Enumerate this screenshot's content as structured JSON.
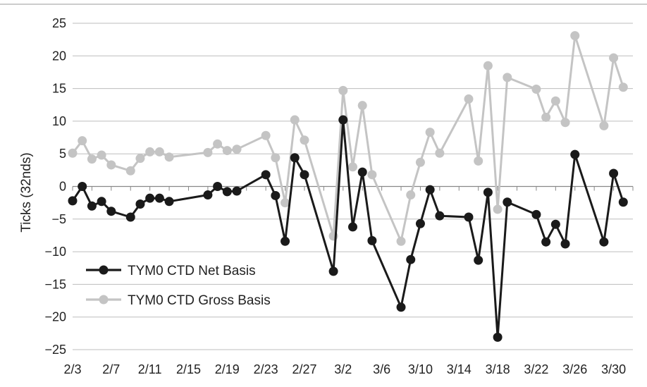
{
  "chart_data": {
    "type": "line",
    "title": "",
    "xlabel": "",
    "ylabel": "Ticks (32nds)",
    "ylim": [
      -25,
      25
    ],
    "y_ticks": [
      25,
      20,
      15,
      10,
      5,
      0,
      -5,
      -10,
      -15,
      -20,
      -25
    ],
    "y_tick_labels": [
      "25",
      "20",
      "15",
      "10",
      "5",
      "0",
      "−5",
      "−10",
      "−15",
      "−20",
      "−25"
    ],
    "x_ticks": [
      {
        "day": 3,
        "label": "2/3"
      },
      {
        "day": 7,
        "label": "2/7"
      },
      {
        "day": 11,
        "label": "2/11"
      },
      {
        "day": 15,
        "label": "2/15"
      },
      {
        "day": 19,
        "label": "2/19"
      },
      {
        "day": 23,
        "label": "2/23"
      },
      {
        "day": 27,
        "label": "2/27"
      },
      {
        "day": 31,
        "label": "3/2"
      },
      {
        "day": 35,
        "label": "3/6"
      },
      {
        "day": 39,
        "label": "3/10"
      },
      {
        "day": 43,
        "label": "3/14"
      },
      {
        "day": 47,
        "label": "3/18"
      },
      {
        "day": 51,
        "label": "3/22"
      },
      {
        "day": 55,
        "label": "3/26"
      },
      {
        "day": 59,
        "label": "3/30"
      }
    ],
    "xlim_days": [
      3,
      61
    ],
    "grid": "horizontal",
    "legend_position": "bottom-left",
    "series": [
      {
        "name": "TYM0 CTD Net Basis",
        "color": "#1a1a1a",
        "points": [
          [
            3,
            -2.2
          ],
          [
            4,
            0
          ],
          [
            5,
            -3
          ],
          [
            6,
            -2.3
          ],
          [
            7,
            -3.8
          ],
          [
            9,
            -4.7
          ],
          [
            10,
            -2.7
          ],
          [
            11,
            -1.8
          ],
          [
            12,
            -1.8
          ],
          [
            13,
            -2.3
          ],
          [
            17,
            -1.3
          ],
          [
            18,
            0
          ],
          [
            19,
            -0.8
          ],
          [
            20,
            -0.7
          ],
          [
            23,
            1.8
          ],
          [
            24,
            -1.4
          ],
          [
            25,
            -8.4
          ],
          [
            26,
            4.4
          ],
          [
            27,
            1.8
          ],
          [
            30,
            -13
          ],
          [
            31,
            10.2
          ],
          [
            32,
            -6.2
          ],
          [
            33,
            2.2
          ],
          [
            34,
            -8.3
          ],
          [
            37,
            -18.5
          ],
          [
            38,
            -11.2
          ],
          [
            39,
            -5.7
          ],
          [
            40,
            -0.5
          ],
          [
            41,
            -4.5
          ],
          [
            44,
            -4.7
          ],
          [
            45,
            -11.3
          ],
          [
            46,
            -0.9
          ],
          [
            47,
            -23.1
          ],
          [
            48,
            -2.4
          ],
          [
            51,
            -4.3
          ],
          [
            52,
            -8.5
          ],
          [
            53,
            -5.8
          ],
          [
            54,
            -8.8
          ],
          [
            55,
            4.9
          ],
          [
            58,
            -8.5
          ],
          [
            59,
            2
          ],
          [
            60,
            -2.4
          ]
        ]
      },
      {
        "name": "TYM0 CTD Gross Basis",
        "color": "#c4c4c4",
        "points": [
          [
            3,
            5.1
          ],
          [
            4,
            7
          ],
          [
            5,
            4.2
          ],
          [
            6,
            4.8
          ],
          [
            7,
            3.3
          ],
          [
            9,
            2.4
          ],
          [
            10,
            4.3
          ],
          [
            11,
            5.3
          ],
          [
            12,
            5.3
          ],
          [
            13,
            4.5
          ],
          [
            17,
            5.2
          ],
          [
            18,
            6.5
          ],
          [
            19,
            5.5
          ],
          [
            20,
            5.7
          ],
          [
            23,
            7.8
          ],
          [
            24,
            4.4
          ],
          [
            25,
            -2.5
          ],
          [
            26,
            10.2
          ],
          [
            27,
            7.1
          ],
          [
            30,
            -7.6
          ],
          [
            31,
            14.7
          ],
          [
            32,
            3
          ],
          [
            33,
            12.4
          ],
          [
            34,
            1.8
          ],
          [
            37,
            -8.4
          ],
          [
            38,
            -1.3
          ],
          [
            39,
            3.7
          ],
          [
            40,
            8.3
          ],
          [
            41,
            5.1
          ],
          [
            44,
            13.4
          ],
          [
            45,
            3.9
          ],
          [
            46,
            18.5
          ],
          [
            47,
            -3.5
          ],
          [
            48,
            16.7
          ],
          [
            51,
            14.9
          ],
          [
            52,
            10.6
          ],
          [
            53,
            13.1
          ],
          [
            54,
            9.8
          ],
          [
            55,
            23.1
          ],
          [
            58,
            9.3
          ],
          [
            59,
            19.7
          ],
          [
            60,
            15.2
          ]
        ]
      }
    ]
  }
}
